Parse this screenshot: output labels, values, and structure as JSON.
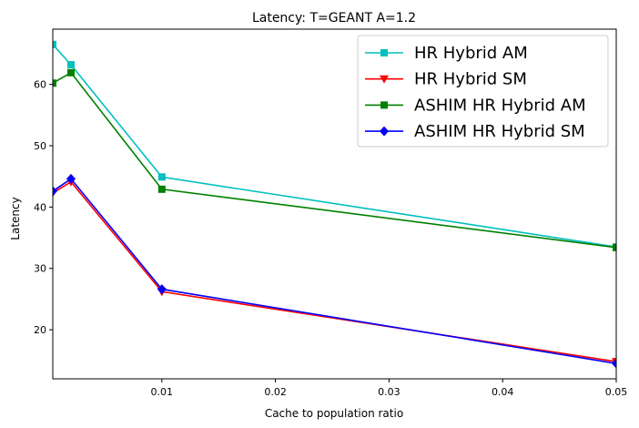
{
  "chart_data": {
    "type": "line",
    "title": "Latency: T=GEANT A=1.2",
    "xlabel": "Cache to population ratio",
    "ylabel": "Latency",
    "xlim": [
      0.0004,
      0.05
    ],
    "ylim": [
      12,
      69
    ],
    "x_ticks": [
      0.01,
      0.02,
      0.03,
      0.04,
      0.05
    ],
    "x_tick_labels": [
      "0.01",
      "0.02",
      "0.03",
      "0.04",
      "0.05"
    ],
    "y_ticks": [
      20,
      30,
      40,
      50,
      60
    ],
    "y_tick_labels": [
      "20",
      "30",
      "40",
      "50",
      "60"
    ],
    "grid": false,
    "legend_position": "top-right",
    "x": [
      0.0004,
      0.002,
      0.01,
      0.05
    ],
    "series": [
      {
        "name": "HR Hybrid AM",
        "color": "#00bfbf",
        "marker": "square",
        "values": [
          66.5,
          63.2,
          44.9,
          33.5
        ]
      },
      {
        "name": "HR Hybrid SM",
        "color": "#ff0000",
        "marker": "triangle-down",
        "values": [
          42.3,
          44.1,
          26.2,
          14.8
        ]
      },
      {
        "name": "ASHIM HR Hybrid AM",
        "color": "#008000",
        "marker": "square",
        "values": [
          60.2,
          61.9,
          42.9,
          33.4
        ]
      },
      {
        "name": "ASHIM HR Hybrid SM",
        "color": "#0000ff",
        "marker": "diamond",
        "values": [
          42.6,
          44.6,
          26.6,
          14.5
        ]
      }
    ]
  }
}
